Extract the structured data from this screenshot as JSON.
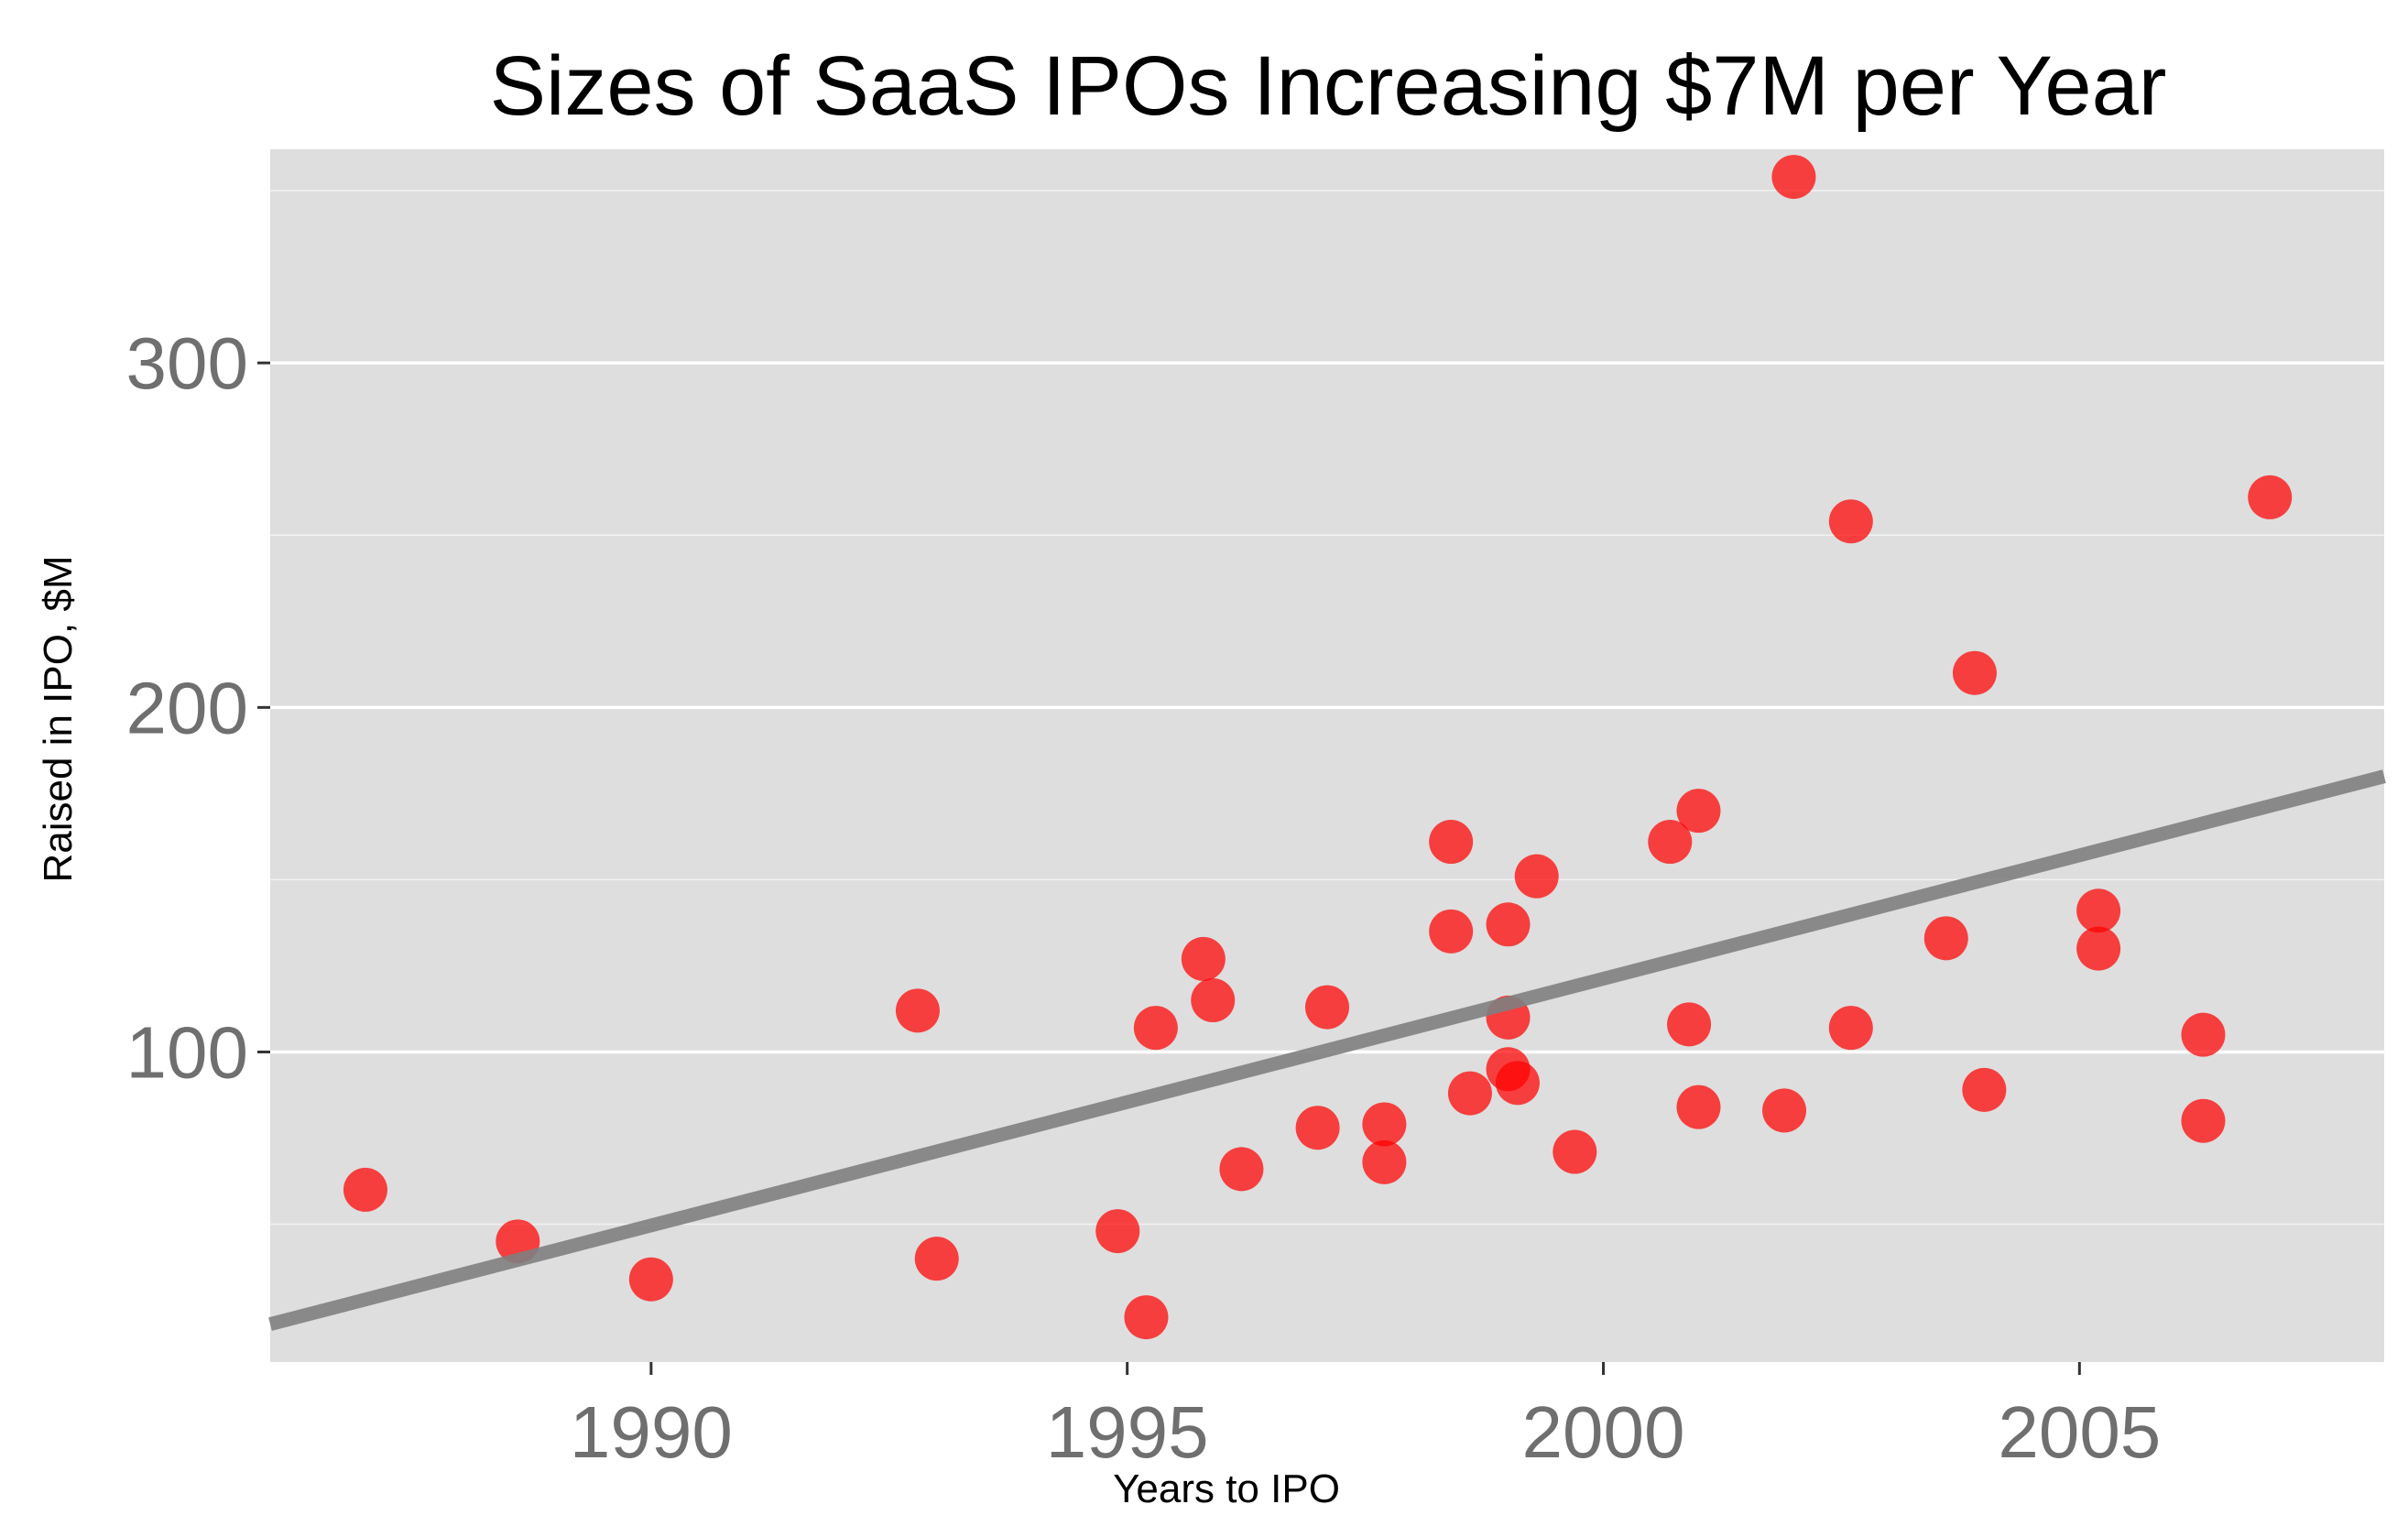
{
  "chart_data": {
    "type": "scatter",
    "title": "Sizes of SaaS IPOs Increasing $7M per Year",
    "xlabel": "Years to IPO",
    "ylabel": "Raised in IPO, $M",
    "xlim": [
      1986.0,
      2008.2
    ],
    "ylim": [
      10,
      362
    ],
    "x_ticks": [
      {
        "value": 1990,
        "label": "1990"
      },
      {
        "value": 1995,
        "label": "1995"
      },
      {
        "value": 2000,
        "label": "2000"
      },
      {
        "value": 2005,
        "label": "2005"
      }
    ],
    "y_ticks": [
      {
        "value": 100,
        "label": "100"
      },
      {
        "value": 200,
        "label": "200"
      },
      {
        "value": 300,
        "label": "300"
      }
    ],
    "y_minor_ticks": [
      50,
      150,
      250,
      350
    ],
    "grid": true,
    "point_color": "#ff0000",
    "trend_color": "#808080",
    "panel_color": "#dedede",
    "points": [
      {
        "x": 1987.0,
        "y": 60
      },
      {
        "x": 1988.6,
        "y": 45
      },
      {
        "x": 1990.0,
        "y": 34
      },
      {
        "x": 1992.8,
        "y": 112
      },
      {
        "x": 1993.0,
        "y": 40
      },
      {
        "x": 1994.9,
        "y": 48
      },
      {
        "x": 1995.2,
        "y": 23
      },
      {
        "x": 1995.3,
        "y": 107
      },
      {
        "x": 1995.8,
        "y": 127
      },
      {
        "x": 1995.9,
        "y": 115
      },
      {
        "x": 1996.2,
        "y": 66
      },
      {
        "x": 1997.0,
        "y": 78
      },
      {
        "x": 1997.1,
        "y": 113
      },
      {
        "x": 1997.7,
        "y": 68
      },
      {
        "x": 1997.7,
        "y": 79
      },
      {
        "x": 1998.4,
        "y": 161
      },
      {
        "x": 1998.4,
        "y": 135
      },
      {
        "x": 1998.6,
        "y": 88
      },
      {
        "x": 1999.0,
        "y": 137
      },
      {
        "x": 1999.0,
        "y": 110
      },
      {
        "x": 1999.0,
        "y": 95
      },
      {
        "x": 1999.1,
        "y": 91
      },
      {
        "x": 1999.3,
        "y": 151
      },
      {
        "x": 1999.7,
        "y": 71
      },
      {
        "x": 2000.7,
        "y": 161
      },
      {
        "x": 2000.9,
        "y": 108
      },
      {
        "x": 2001.0,
        "y": 170
      },
      {
        "x": 2001.0,
        "y": 84
      },
      {
        "x": 2001.9,
        "y": 83
      },
      {
        "x": 2002.0,
        "y": 354
      },
      {
        "x": 2002.6,
        "y": 254
      },
      {
        "x": 2002.6,
        "y": 107
      },
      {
        "x": 2003.6,
        "y": 133
      },
      {
        "x": 2003.9,
        "y": 210
      },
      {
        "x": 2004.0,
        "y": 89
      },
      {
        "x": 2005.2,
        "y": 141
      },
      {
        "x": 2005.2,
        "y": 130
      },
      {
        "x": 2006.3,
        "y": 105
      },
      {
        "x": 2006.3,
        "y": 80
      },
      {
        "x": 2007.0,
        "y": 261
      }
    ],
    "trend_line": {
      "x": [
        1986.0,
        2008.2
      ],
      "y": [
        21,
        180
      ]
    }
  }
}
